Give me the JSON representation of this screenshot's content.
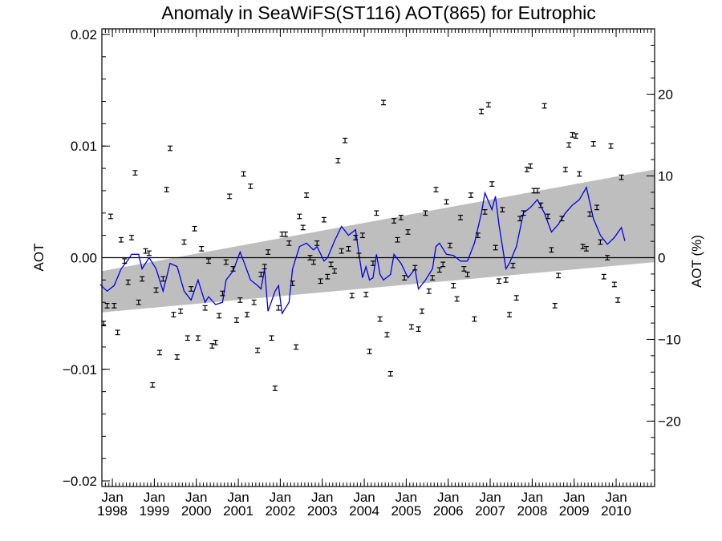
{
  "chart_data": {
    "type": "scatter",
    "title": "Anomaly in SeaWiFS(ST116) AOT(865) for Eutrophic",
    "ylabel": "AOT",
    "y2label": "AOT (%)",
    "xlabel": "",
    "x_range": [
      1997.75,
      2010.9167
    ],
    "ylim": [
      -0.0205,
      0.0205
    ],
    "y2lim": [
      -28,
      28
    ],
    "y_ticks": [
      -0.02,
      -0.01,
      0.0,
      0.01,
      0.02
    ],
    "y_tick_labels": [
      "−0.02",
      "−0.01",
      "0.00",
      "0.01",
      "0.02"
    ],
    "y2_ticks": [
      -20,
      -10,
      0,
      10,
      20
    ],
    "y2_tick_labels": [
      "−20",
      "−10",
      "0",
      "10",
      "20"
    ],
    "x_ticks": [
      1998,
      1999,
      2000,
      2001,
      2002,
      2003,
      2004,
      2005,
      2006,
      2007,
      2008,
      2009,
      2010
    ],
    "x_tick_month": "Jan",
    "x_tick_years": [
      "1998",
      "1999",
      "2000",
      "2001",
      "2002",
      "2003",
      "2004",
      "2005",
      "2006",
      "2007",
      "2008",
      "2009",
      "2010"
    ],
    "zero_line": 0,
    "error_bar_halfwidth": 0.0002,
    "colors": {
      "line": "#0000ee",
      "band": "#bebebe",
      "points": "#000000"
    },
    "trend_band": {
      "x": [
        1997.75,
        2010.9167
      ],
      "upper": [
        -0.0012,
        0.0079
      ],
      "lower": [
        -0.0049,
        -0.0004
      ]
    },
    "monthly_anomaly": [
      [
        1997.7083,
        -0.006
      ],
      [
        1997.7917,
        -0.0059
      ],
      [
        1997.875,
        -0.0043
      ],
      [
        1997.9583,
        0.0037
      ],
      [
        1998.0417,
        -0.0043
      ],
      [
        1998.125,
        -0.0067
      ],
      [
        1998.2083,
        0.0016
      ],
      [
        1998.2917,
        -0.0003
      ],
      [
        1998.375,
        -0.0022
      ],
      [
        1998.4583,
        0.0018
      ],
      [
        1998.5417,
        0.0076
      ],
      [
        1998.625,
        -0.004
      ],
      [
        1998.7083,
        -0.0019
      ],
      [
        1998.7917,
        0.0006
      ],
      [
        1998.875,
        0.0004
      ],
      [
        1998.9583,
        -0.0114
      ],
      [
        1999.0417,
        -0.0029
      ],
      [
        1999.125,
        -0.0085
      ],
      [
        1999.2083,
        -0.0019
      ],
      [
        1999.2917,
        0.0061
      ],
      [
        1999.375,
        0.0098
      ],
      [
        1999.4583,
        -0.0051
      ],
      [
        1999.5417,
        -0.0089
      ],
      [
        1999.625,
        -0.0048
      ],
      [
        1999.7083,
        0.0014
      ],
      [
        1999.7917,
        -0.0072
      ],
      [
        1999.875,
        -0.0028
      ],
      [
        1999.9583,
        0.0026
      ],
      [
        2000.0417,
        -0.0072
      ],
      [
        2000.125,
        0.0008
      ],
      [
        2000.2083,
        -0.0045
      ],
      [
        2000.2917,
        -0.0003
      ],
      [
        2000.375,
        -0.0079
      ],
      [
        2000.4583,
        -0.0076
      ],
      [
        2000.5417,
        -0.0052
      ],
      [
        2000.625,
        -0.0032
      ],
      [
        2000.7083,
        -0.0004
      ],
      [
        2000.7917,
        0.0055
      ],
      [
        2000.875,
        -0.001
      ],
      [
        2000.9583,
        -0.0056
      ],
      [
        2001.0417,
        -0.0038
      ],
      [
        2001.125,
        0.0075
      ],
      [
        2001.2083,
        -0.0051
      ],
      [
        2001.2917,
        0.0064
      ],
      [
        2001.375,
        -0.004
      ],
      [
        2001.4583,
        -0.0083
      ],
      [
        2001.5417,
        -0.0015
      ],
      [
        2001.625,
        -0.0008
      ],
      [
        2001.7083,
        0.0005
      ],
      [
        2001.7917,
        -0.0072
      ],
      [
        2001.875,
        -0.0117
      ],
      [
        2001.9583,
        -0.0045
      ],
      [
        2002.0417,
        0.0021
      ],
      [
        2002.125,
        0.0021
      ],
      [
        2002.2083,
        0.0013
      ],
      [
        2002.2917,
        -0.0023
      ],
      [
        2002.375,
        -0.008
      ],
      [
        2002.4583,
        0.0037
      ],
      [
        2002.5417,
        0.0027
      ],
      [
        2002.625,
        0.0056
      ],
      [
        2002.7083,
        0.0
      ],
      [
        2002.7917,
        -0.0004
      ],
      [
        2002.875,
        0.0013
      ],
      [
        2002.9583,
        -0.0021
      ],
      [
        2003.0417,
        0.0034
      ],
      [
        2003.125,
        -0.0017
      ],
      [
        2003.2083,
        -0.0006
      ],
      [
        2003.2917,
        -0.0012
      ],
      [
        2003.375,
        0.0087
      ],
      [
        2003.4583,
        0.0006
      ],
      [
        2003.5417,
        0.0105
      ],
      [
        2003.625,
        0.0008
      ],
      [
        2003.7083,
        -0.0034
      ],
      [
        2003.7917,
        0.0018
      ],
      [
        2003.875,
        0.0002
      ],
      [
        2003.9583,
        0.002
      ],
      [
        2004.0417,
        -0.0033
      ],
      [
        2004.125,
        -0.0084
      ],
      [
        2004.2083,
        -0.0005
      ],
      [
        2004.2917,
        0.004
      ],
      [
        2004.375,
        -0.0055
      ],
      [
        2004.4583,
        0.0139
      ],
      [
        2004.5417,
        -0.0069
      ],
      [
        2004.625,
        -0.0104
      ],
      [
        2004.7083,
        0.0033
      ],
      [
        2004.7917,
        0.0016
      ],
      [
        2004.875,
        0.0036
      ],
      [
        2004.9583,
        -0.0018
      ],
      [
        2005.0417,
        0.0023
      ],
      [
        2005.125,
        -0.0062
      ],
      [
        2005.2083,
        -0.0009
      ],
      [
        2005.2917,
        -0.0064
      ],
      [
        2005.375,
        -0.0048
      ],
      [
        2005.4583,
        0.004
      ],
      [
        2005.5417,
        -0.003
      ],
      [
        2005.625,
        -0.0018
      ],
      [
        2005.7083,
        0.0061
      ],
      [
        2005.7917,
        -0.0011
      ],
      [
        2005.875,
        -0.0006
      ],
      [
        2005.9583,
        0.005
      ],
      [
        2006.0417,
        0.0011
      ],
      [
        2006.125,
        -0.0025
      ],
      [
        2006.2083,
        -0.0037
      ],
      [
        2006.2917,
        0.0036
      ],
      [
        2006.375,
        -0.001
      ],
      [
        2006.4583,
        -0.0015
      ],
      [
        2006.5417,
        0.0056
      ],
      [
        2006.625,
        -0.0055
      ],
      [
        2006.7083,
        0.002
      ],
      [
        2006.7917,
        0.0131
      ],
      [
        2006.875,
        0.0041
      ],
      [
        2006.9583,
        0.0137
      ],
      [
        2007.0417,
        0.0066
      ],
      [
        2007.125,
        0.0009
      ],
      [
        2007.2083,
        -0.0021
      ],
      [
        2007.2917,
        0.0043
      ],
      [
        2007.375,
        -0.002
      ],
      [
        2007.4583,
        -0.0051
      ],
      [
        2007.5417,
        -0.0007
      ],
      [
        2007.625,
        -0.0036
      ],
      [
        2007.7083,
        0.0035
      ],
      [
        2007.7917,
        0.004
      ],
      [
        2007.875,
        0.0079
      ],
      [
        2007.9583,
        0.0082
      ],
      [
        2008.0417,
        0.006
      ],
      [
        2008.125,
        0.006
      ],
      [
        2008.2083,
        0.0047
      ],
      [
        2008.2917,
        0.0136
      ],
      [
        2008.375,
        0.0037
      ],
      [
        2008.4583,
        0.0007
      ],
      [
        2008.5417,
        -0.0043
      ],
      [
        2008.625,
        -0.0016
      ],
      [
        2008.7083,
        0.0035
      ],
      [
        2008.7917,
        0.0079
      ],
      [
        2008.875,
        0.0101
      ],
      [
        2008.9583,
        0.011
      ],
      [
        2009.0417,
        0.0109
      ],
      [
        2009.125,
        0.0075
      ],
      [
        2009.2083,
        0.001
      ],
      [
        2009.2917,
        0.0008
      ],
      [
        2009.375,
        0.0039
      ],
      [
        2009.4583,
        0.0102
      ],
      [
        2009.5417,
        0.0045
      ],
      [
        2009.625,
        0.0014
      ],
      [
        2009.7083,
        -0.0017
      ],
      [
        2009.7917,
        0.0
      ],
      [
        2009.875,
        0.01
      ],
      [
        2009.9583,
        -0.0024
      ],
      [
        2010.0417,
        -0.0038
      ],
      [
        2010.125,
        0.0072
      ]
    ],
    "running_mean": [
      [
        1997.7083,
        -0.0024
      ],
      [
        1997.875,
        -0.003
      ],
      [
        1998.0417,
        -0.0025
      ],
      [
        1998.2083,
        -0.001
      ],
      [
        1998.375,
        -0.0002
      ],
      [
        1998.4583,
        0.0003
      ],
      [
        1998.625,
        0.0003
      ],
      [
        1998.7083,
        -0.001
      ],
      [
        1998.875,
        0.0
      ],
      [
        1999.0417,
        -0.001
      ],
      [
        1999.2083,
        -0.003
      ],
      [
        1999.375,
        -0.0005
      ],
      [
        1999.5417,
        -0.0008
      ],
      [
        1999.7083,
        -0.003
      ],
      [
        1999.875,
        -0.0038
      ],
      [
        2000.0417,
        -0.002
      ],
      [
        2000.2083,
        -0.004
      ],
      [
        2000.2917,
        -0.0035
      ],
      [
        2000.4583,
        -0.0042
      ],
      [
        2000.625,
        -0.004
      ],
      [
        2000.7083,
        -0.002
      ],
      [
        2000.875,
        -0.0012
      ],
      [
        2001.0417,
        0.0005
      ],
      [
        2001.125,
        -0.0003
      ],
      [
        2001.2917,
        -0.002
      ],
      [
        2001.4583,
        -0.0025
      ],
      [
        2001.5417,
        -0.0028
      ],
      [
        2001.625,
        -0.001
      ],
      [
        2001.7083,
        -0.0048
      ],
      [
        2001.875,
        -0.003
      ],
      [
        2001.9583,
        -0.0025
      ],
      [
        2002.0417,
        -0.005
      ],
      [
        2002.2083,
        -0.004
      ],
      [
        2002.2917,
        -0.001
      ],
      [
        2002.4583,
        0.001
      ],
      [
        2002.625,
        0.0013
      ],
      [
        2002.7917,
        0.0007
      ],
      [
        2002.875,
        0.001
      ],
      [
        2003.0417,
        -0.0003
      ],
      [
        2003.125,
        0.0
      ],
      [
        2003.2917,
        0.0015
      ],
      [
        2003.4583,
        0.0028
      ],
      [
        2003.625,
        0.002
      ],
      [
        2003.7917,
        0.0025
      ],
      [
        2003.875,
        0.0003
      ],
      [
        2003.9583,
        -0.0018
      ],
      [
        2004.0417,
        -0.0008
      ],
      [
        2004.125,
        -0.002
      ],
      [
        2004.2083,
        -0.0018
      ],
      [
        2004.2917,
        0.0003
      ],
      [
        2004.375,
        -0.0015
      ],
      [
        2004.4583,
        -0.002
      ],
      [
        2004.625,
        -0.0015
      ],
      [
        2004.7083,
        0.0003
      ],
      [
        2004.875,
        -0.0005
      ],
      [
        2005.0417,
        -0.0018
      ],
      [
        2005.2083,
        -0.001
      ],
      [
        2005.2917,
        -0.0028
      ],
      [
        2005.4583,
        -0.002
      ],
      [
        2005.625,
        -0.001
      ],
      [
        2005.7083,
        0.001
      ],
      [
        2005.7917,
        0.0013
      ],
      [
        2005.9583,
        0.0003
      ],
      [
        2006.125,
        0.0002
      ],
      [
        2006.2917,
        -0.0003
      ],
      [
        2006.4583,
        -0.0003
      ],
      [
        2006.625,
        0.0013
      ],
      [
        2006.7917,
        0.004
      ],
      [
        2006.875,
        0.0058
      ],
      [
        2007.0417,
        0.0043
      ],
      [
        2007.125,
        0.0055
      ],
      [
        2007.2083,
        0.003
      ],
      [
        2007.375,
        -0.001
      ],
      [
        2007.4583,
        -0.0005
      ],
      [
        2007.625,
        0.001
      ],
      [
        2007.7917,
        0.004
      ],
      [
        2007.9583,
        0.0045
      ],
      [
        2008.125,
        0.0052
      ],
      [
        2008.2917,
        0.004
      ],
      [
        2008.4583,
        0.0023
      ],
      [
        2008.625,
        0.003
      ],
      [
        2008.7917,
        0.004
      ],
      [
        2008.9583,
        0.0047
      ],
      [
        2009.125,
        0.0052
      ],
      [
        2009.2917,
        0.0063
      ],
      [
        2009.4583,
        0.0035
      ],
      [
        2009.625,
        0.002
      ],
      [
        2009.7917,
        0.0012
      ],
      [
        2009.9583,
        0.0018
      ],
      [
        2010.125,
        0.0027
      ],
      [
        2010.2083,
        0.0015
      ]
    ]
  }
}
